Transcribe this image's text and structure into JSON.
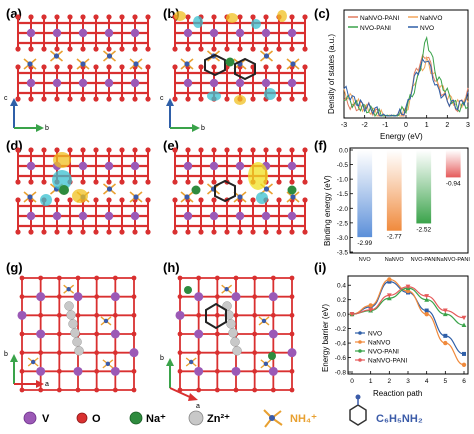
{
  "panel_labels": [
    "(a)",
    "(b)",
    "(c)",
    "(d)",
    "(e)",
    "(f)",
    "(g)",
    "(h)",
    "(i)"
  ],
  "axes_letters": {
    "c": "c",
    "b": "b",
    "a": "a"
  },
  "dos_chart": {
    "type": "line",
    "ylabel": "Density of states (a.u.)",
    "xlabel": "Energy (eV)",
    "xticks": [
      "-3",
      "-2",
      "-1",
      "0",
      "1",
      "2",
      "3"
    ],
    "xlim": [
      -3,
      3
    ],
    "legend": [
      {
        "name": "NaNVO-PANI",
        "color": "#e07a5f"
      },
      {
        "name": "NaNVO",
        "color": "#f2a65a"
      },
      {
        "name": "NVO-PANI",
        "color": "#3aa34a"
      },
      {
        "name": "NVO",
        "color": "#2f5fa8"
      }
    ]
  },
  "chart_data": [
    {
      "type": "bar",
      "categories": [
        "NVO",
        "NaNVO",
        "NVO-PANI",
        "NaNVO-PANI"
      ],
      "values": [
        -2.99,
        -2.77,
        -2.52,
        -0.94
      ],
      "value_labels": [
        "-2.99",
        "-2.77",
        "-2.52",
        "-0.94"
      ],
      "ylabel": "Binding energy (eV)",
      "ylim": [
        -3.5,
        0
      ],
      "yticks": [
        "0.0",
        "-0.5",
        "-1.0",
        "-1.5",
        "-2.0",
        "-2.5",
        "-3.0",
        "-3.5"
      ],
      "colors": [
        "#5b8fd9",
        "#f08a3c",
        "#3aa34a",
        "#e55a5a"
      ]
    },
    {
      "type": "line",
      "xlabel": "Reaction path",
      "ylabel": "Energy barrier (eV)",
      "x": [
        0,
        1,
        2,
        3,
        4,
        5,
        6
      ],
      "ylim": [
        -0.8,
        0.5
      ],
      "yticks": [
        "0.4",
        "0.2",
        "0.0",
        "-0.2",
        "-0.4",
        "-0.6",
        "-0.8"
      ],
      "xticks": [
        "0",
        "1",
        "2",
        "3",
        "4",
        "5",
        "6"
      ],
      "series": [
        {
          "name": "NVO",
          "color": "#2f5fa8",
          "values": [
            0.0,
            0.1,
            0.45,
            0.3,
            0.05,
            -0.3,
            -0.55
          ]
        },
        {
          "name": "NaNVO",
          "color": "#f08a3c",
          "values": [
            0.0,
            0.12,
            0.48,
            0.32,
            0.0,
            -0.4,
            -0.7
          ]
        },
        {
          "name": "NVO-PANI",
          "color": "#3aa34a",
          "values": [
            0.0,
            0.05,
            0.22,
            0.36,
            0.2,
            0.0,
            -0.15
          ]
        },
        {
          "name": "NaNVO-PANI",
          "color": "#e55a5a",
          "values": [
            0.0,
            0.06,
            0.26,
            0.38,
            0.25,
            0.05,
            -0.05
          ]
        }
      ]
    }
  ],
  "legend_bottom": {
    "items": [
      {
        "label": "V",
        "color": "#9b59b6"
      },
      {
        "label": "O",
        "color": "#d93030"
      },
      {
        "label": "Na⁺",
        "color": "#2e8b3e"
      },
      {
        "label": "Zn²⁺",
        "color": "#b0b0b0"
      },
      {
        "label": "NH₄⁺",
        "color": "#e8a030"
      },
      {
        "label": "C₆H₅NH₂",
        "color": "#3b5ba8"
      }
    ]
  }
}
